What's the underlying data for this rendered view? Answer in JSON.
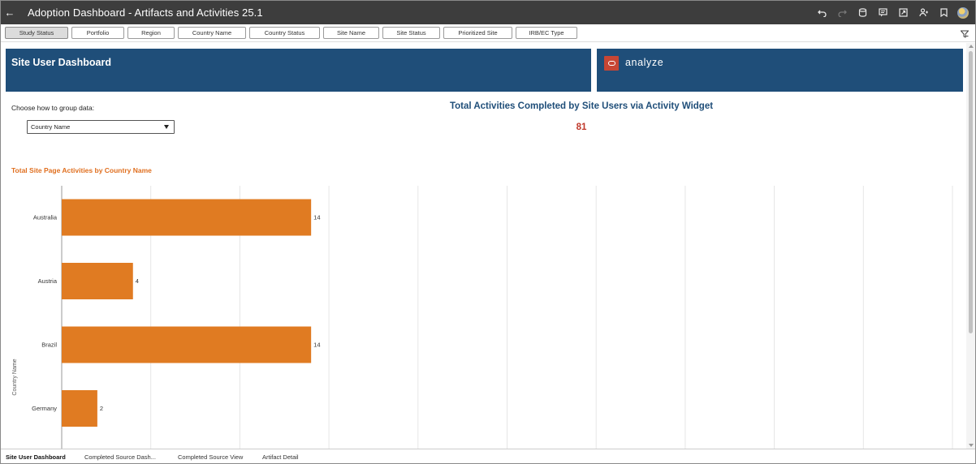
{
  "app": {
    "title": "Adoption Dashboard - Artifacts and Activities 25.1"
  },
  "toolbar_icons": [
    "undo-icon",
    "redo-icon",
    "data-icon",
    "comment-icon",
    "present-icon",
    "share-user-icon",
    "bookmark-icon",
    "avatar"
  ],
  "filters": [
    {
      "label": "Study Status",
      "active": true
    },
    {
      "label": "Portfolio",
      "active": false
    },
    {
      "label": "Region",
      "active": false
    },
    {
      "label": "Country Name",
      "active": false
    },
    {
      "label": "Country Status",
      "active": false
    },
    {
      "label": "Site Name",
      "active": false
    },
    {
      "label": "Site Status",
      "active": false
    },
    {
      "label": "Prioritized Site",
      "active": false
    },
    {
      "label": "IRB/EC Type",
      "active": false
    }
  ],
  "header": {
    "title": "Site User Dashboard",
    "logo_text": "analyze"
  },
  "group_control": {
    "label": "Choose how to group data:",
    "selected": "Country Name"
  },
  "kpi": {
    "title": "Total Activities Completed by Site Users via Activity Widget",
    "value": "81"
  },
  "chart_data": {
    "type": "bar",
    "orientation": "horizontal",
    "title": "Total Site Page Activities by Country Name",
    "ylabel": "Country Name",
    "xlabel": "",
    "categories": [
      "Australia",
      "Austria",
      "Brazil",
      "Germany"
    ],
    "values": [
      14,
      4,
      14,
      2
    ],
    "xlim": [
      0,
      50
    ],
    "grid": true,
    "color": "#e07b22"
  },
  "bottom_tabs": [
    {
      "label": "Site User Dashboard",
      "active": true
    },
    {
      "label": "Completed Source Dash...",
      "active": false
    },
    {
      "label": "Completed Source View",
      "active": false
    },
    {
      "label": "Artifact Detail",
      "active": false
    }
  ]
}
